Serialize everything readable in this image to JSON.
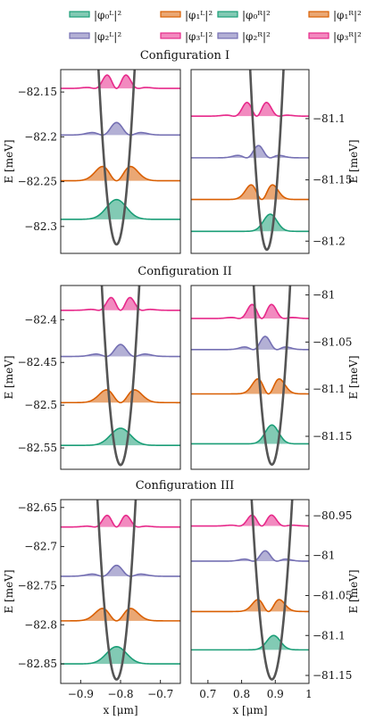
{
  "legend": [
    {
      "label": "|φ₀ᴸ|²",
      "color": "#1b9e77"
    },
    {
      "label": "|φ₁ᴸ|²",
      "color": "#d95f02"
    },
    {
      "label": "|φ₀ᴿ|²",
      "color": "#1b9e77"
    },
    {
      "label": "|φ₁ᴿ|²",
      "color": "#d95f02"
    },
    {
      "label": "|φ₂ᴸ|²",
      "color": "#7570b3"
    },
    {
      "label": "|φ₃ᴸ|²",
      "color": "#e7298a"
    },
    {
      "label": "|φ₂ᴿ|²",
      "color": "#7570b3"
    },
    {
      "label": "|φ₃ᴿ|²",
      "color": "#e7298a"
    }
  ],
  "axis_labels": {
    "ylabel": "E [meV]",
    "xlabel": "x [μm]"
  },
  "chart_data": [
    {
      "type": "area",
      "title": "Configuration I",
      "side": "left",
      "xlim": [
        -0.95,
        -0.65
      ],
      "ylim": [
        -82.33,
        -82.125
      ],
      "yticks": [
        -82.15,
        -82.2,
        -82.25,
        -82.3
      ],
      "xticks": [],
      "levels": [
        -82.292,
        -82.249,
        -82.198,
        -82.146
      ],
      "potential": {
        "center": -0.81,
        "min": -82.32,
        "curvature": 95,
        "quartic": 0
      },
      "wavefunction_centers": [
        -0.81,
        -0.81,
        -0.81,
        -0.81
      ],
      "wavefunction_widths": [
        0.05,
        0.05,
        0.05,
        0.045
      ],
      "amplitudes": [
        0.022,
        0.016,
        0.014,
        0.012
      ]
    },
    {
      "type": "area",
      "title": "",
      "side": "right",
      "xlim": [
        0.65,
        1.0
      ],
      "ylim": [
        -81.21,
        -81.06
      ],
      "yticks": [
        -81.1,
        -81.15,
        -81.2
      ],
      "xticks": [],
      "levels": [
        -81.192,
        -81.166,
        -81.132,
        -81.098
      ],
      "potential": {
        "center": 0.875,
        "min": -81.207,
        "curvature": 60,
        "quartic": 0
      },
      "wavefunction_centers": [
        0.885,
        0.86,
        0.85,
        0.845
      ],
      "wavefunction_widths": [
        0.04,
        0.045,
        0.05,
        0.055
      ],
      "amplitudes": [
        0.014,
        0.012,
        0.01,
        0.009
      ]
    },
    {
      "type": "area",
      "title": "Configuration II",
      "side": "left",
      "xlim": [
        -0.95,
        -0.65
      ],
      "ylim": [
        -82.575,
        -82.36
      ],
      "yticks": [
        -82.4,
        -82.45,
        -82.5,
        -82.55
      ],
      "xticks": [],
      "levels": [
        -82.547,
        -82.497,
        -82.443,
        -82.389
      ],
      "potential": {
        "center": -0.8,
        "min": -82.57,
        "curvature": 95,
        "quartic": 0
      },
      "wavefunction_centers": [
        -0.8,
        -0.8,
        -0.8,
        -0.8
      ],
      "wavefunction_widths": [
        0.05,
        0.05,
        0.05,
        0.045
      ],
      "amplitudes": [
        0.02,
        0.015,
        0.014,
        0.012
      ]
    },
    {
      "type": "area",
      "title": "",
      "side": "right",
      "xlim": [
        0.65,
        1.0
      ],
      "ylim": [
        -81.185,
        -80.99
      ],
      "yticks": [
        -81,
        -81.05,
        -81.1,
        -81.15
      ],
      "xticks": [],
      "levels": [
        -81.158,
        -81.105,
        -81.058,
        -81.025
      ],
      "potential": {
        "center": 0.89,
        "min": -81.18,
        "curvature": 65,
        "quartic": 0
      },
      "wavefunction_centers": [
        0.89,
        0.88,
        0.87,
        0.86
      ],
      "wavefunction_widths": [
        0.04,
        0.045,
        0.05,
        0.055
      ],
      "amplitudes": [
        0.02,
        0.016,
        0.014,
        0.012
      ]
    },
    {
      "type": "area",
      "title": "Configuration III",
      "side": "left",
      "xlim": [
        -0.95,
        -0.65
      ],
      "ylim": [
        -82.875,
        -82.64
      ],
      "yticks": [
        -82.65,
        -82.7,
        -82.75,
        -82.8,
        -82.85
      ],
      "xticks": [
        -0.9,
        -0.8,
        -0.7
      ],
      "levels": [
        -82.85,
        -82.795,
        -82.738,
        -82.675
      ],
      "potential": {
        "center": -0.81,
        "min": -82.87,
        "curvature": 100,
        "quartic": 0
      },
      "wavefunction_centers": [
        -0.81,
        -0.81,
        -0.81,
        -0.81
      ],
      "wavefunction_widths": [
        0.05,
        0.05,
        0.05,
        0.045
      ],
      "amplitudes": [
        0.022,
        0.016,
        0.014,
        0.012
      ]
    },
    {
      "type": "area",
      "title": "",
      "side": "right",
      "xlim": [
        0.65,
        1.0
      ],
      "ylim": [
        -81.16,
        -80.93
      ],
      "yticks": [
        -80.95,
        -81,
        -81.05,
        -81.1,
        -81.15
      ],
      "xticks": [
        0.7,
        0.8,
        0.9,
        1
      ],
      "levels": [
        -81.118,
        -81.07,
        -81.007,
        -80.963
      ],
      "potential": {
        "center": 0.89,
        "min": -81.155,
        "curvature": 62,
        "quartic": 0
      },
      "wavefunction_centers": [
        0.895,
        0.88,
        0.87,
        0.86
      ],
      "wavefunction_widths": [
        0.04,
        0.045,
        0.05,
        0.055
      ],
      "amplitudes": [
        0.018,
        0.015,
        0.013,
        0.011
      ]
    }
  ],
  "state_colors": [
    "#1b9e77",
    "#d95f02",
    "#7570b3",
    "#e7298a"
  ]
}
